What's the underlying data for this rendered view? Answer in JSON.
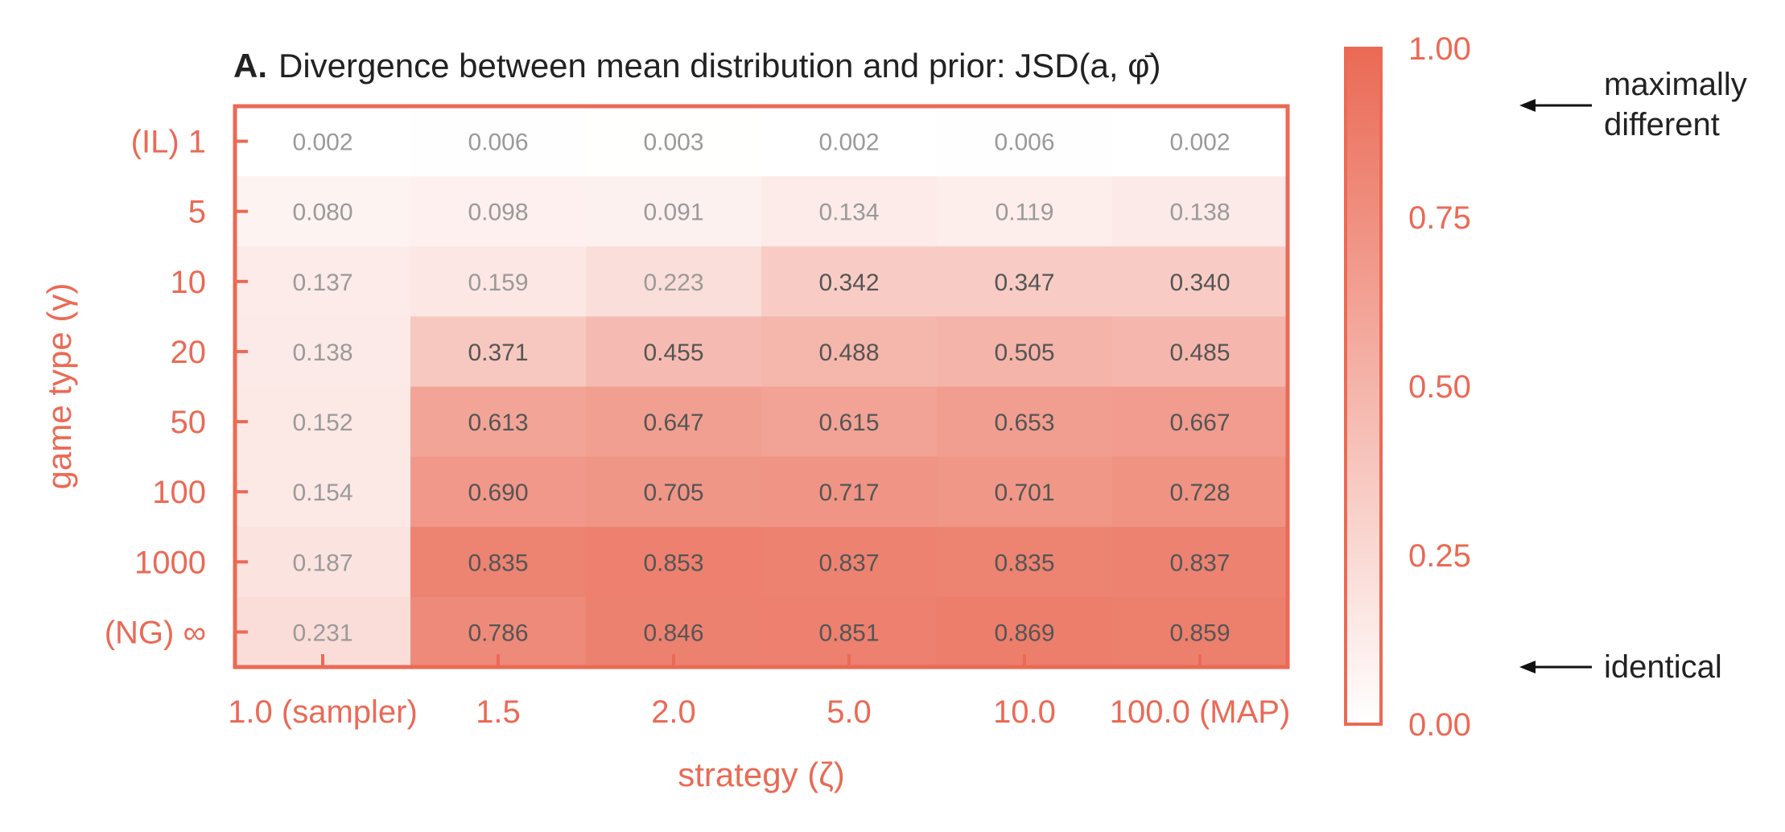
{
  "chart_data": {
    "type": "heatmap",
    "title_prefix": "A.",
    "title": "Divergence between mean distribution and prior: JSD(a, φ̄)",
    "xlabel": "strategy (ζ)",
    "ylabel": "game type (γ)",
    "x_categories": [
      "1.0 (sampler)",
      "1.5",
      "2.0",
      "5.0",
      "10.0",
      "100.0 (MAP)"
    ],
    "y_categories": [
      "(IL) 1",
      "5",
      "10",
      "20",
      "50",
      "100",
      "1000",
      "(NG) ∞"
    ],
    "values": [
      [
        0.002,
        0.006,
        0.003,
        0.002,
        0.006,
        0.002
      ],
      [
        0.08,
        0.098,
        0.091,
        0.134,
        0.119,
        0.138
      ],
      [
        0.137,
        0.159,
        0.223,
        0.342,
        0.347,
        0.34
      ],
      [
        0.138,
        0.371,
        0.455,
        0.488,
        0.505,
        0.485
      ],
      [
        0.152,
        0.613,
        0.647,
        0.615,
        0.653,
        0.667
      ],
      [
        0.154,
        0.69,
        0.705,
        0.717,
        0.701,
        0.728
      ],
      [
        0.187,
        0.835,
        0.853,
        0.837,
        0.835,
        0.837
      ],
      [
        0.231,
        0.786,
        0.846,
        0.851,
        0.869,
        0.859
      ]
    ],
    "value_labels": [
      [
        "0.002",
        "0.006",
        "0.003",
        "0.002",
        "0.006",
        "0.002"
      ],
      [
        "0.080",
        "0.098",
        "0.091",
        "0.134",
        "0.119",
        "0.138"
      ],
      [
        "0.137",
        "0.159",
        "0.223",
        "0.342",
        "0.347",
        "0.340"
      ],
      [
        "0.138",
        "0.371",
        "0.455",
        "0.488",
        "0.505",
        "0.485"
      ],
      [
        "0.152",
        "0.613",
        "0.647",
        "0.615",
        "0.653",
        "0.667"
      ],
      [
        "0.154",
        "0.690",
        "0.705",
        "0.717",
        "0.701",
        "0.728"
      ],
      [
        "0.187",
        "0.835",
        "0.853",
        "0.837",
        "0.835",
        "0.837"
      ],
      [
        "0.231",
        "0.786",
        "0.846",
        "0.851",
        "0.869",
        "0.859"
      ]
    ],
    "colorbar": {
      "vmin": 0,
      "vmax": 1,
      "ticks": [
        "0.00",
        "0.25",
        "0.50",
        "0.75",
        "1.00"
      ],
      "tick_values": [
        0,
        0.25,
        0.5,
        0.75,
        1.0
      ]
    },
    "annotations": {
      "top": "maximally different",
      "top_lines": [
        "maximally",
        "different"
      ],
      "bottom": "identical"
    },
    "colors": {
      "accent": "#ea6a55",
      "low": "#ffffff",
      "high": "#ea6a55",
      "cell_text": "#555555",
      "title_text": "#222222"
    }
  }
}
